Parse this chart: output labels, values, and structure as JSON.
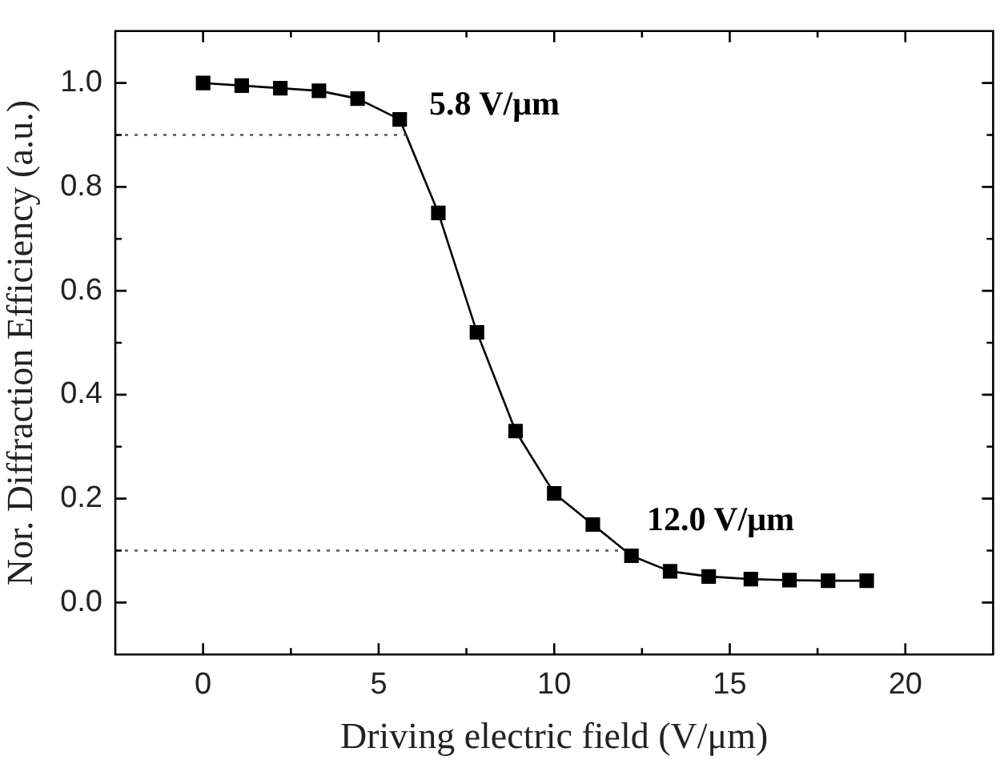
{
  "chart_data": {
    "type": "line",
    "xlabel": "Driving electric field (V/μm)",
    "ylabel": "Nor. Diffraction Efficiency (a.u.)",
    "x": [
      0,
      1.1,
      2.2,
      3.3,
      4.4,
      5.6,
      6.7,
      7.8,
      8.9,
      10.0,
      11.1,
      12.2,
      13.3,
      14.4,
      15.6,
      16.7,
      17.8,
      18.9
    ],
    "series": [
      {
        "color": "#000000",
        "values": [
          1.0,
          0.995,
          0.99,
          0.985,
          0.97,
          0.93,
          0.75,
          0.52,
          0.33,
          0.21,
          0.15,
          0.09,
          0.06,
          0.05,
          0.045,
          0.043,
          0.042,
          0.042
        ]
      }
    ],
    "xlim": [
      -2.5,
      22.5
    ],
    "xticks": [
      0,
      {
        "value": 2.5,
        "label": null
      },
      5,
      {
        "value": 7.5,
        "label": null
      },
      10,
      {
        "value": 12.5,
        "label": null
      },
      15,
      {
        "value": 17.5,
        "label": null
      },
      20
    ],
    "ylim": [
      -0.1,
      1.1
    ],
    "yticks": [
      {
        "value": 0,
        "label": "0.0"
      },
      {
        "value": 0.1,
        "label": null
      },
      {
        "value": 0.2,
        "label": "0.2"
      },
      {
        "value": 0.3,
        "label": null
      },
      {
        "value": 0.4,
        "label": "0.4"
      },
      {
        "value": 0.5,
        "label": null
      },
      {
        "value": 0.6,
        "label": "0.6"
      },
      {
        "value": 0.7,
        "label": null
      },
      {
        "value": 0.8,
        "label": "0.8"
      },
      {
        "value": 0.9,
        "label": null
      },
      {
        "value": 1.0,
        "label": "1.0"
      }
    ],
    "ref_lines": [
      {
        "axis": "y",
        "value": 0.9,
        "line_style": "dotted",
        "color": "#555555"
      },
      {
        "axis": "y",
        "value": 0.1,
        "line_style": "dotted",
        "color": "#555555"
      }
    ],
    "annotations": [
      {
        "text": "5.8 V/μm",
        "x": 5.8,
        "y": 0.9
      },
      {
        "text": "12.0 V/μm",
        "x": 12.0,
        "y": 0.1
      }
    ],
    "grid": false,
    "legend": false,
    "marker": "square",
    "line_style": "solid"
  }
}
